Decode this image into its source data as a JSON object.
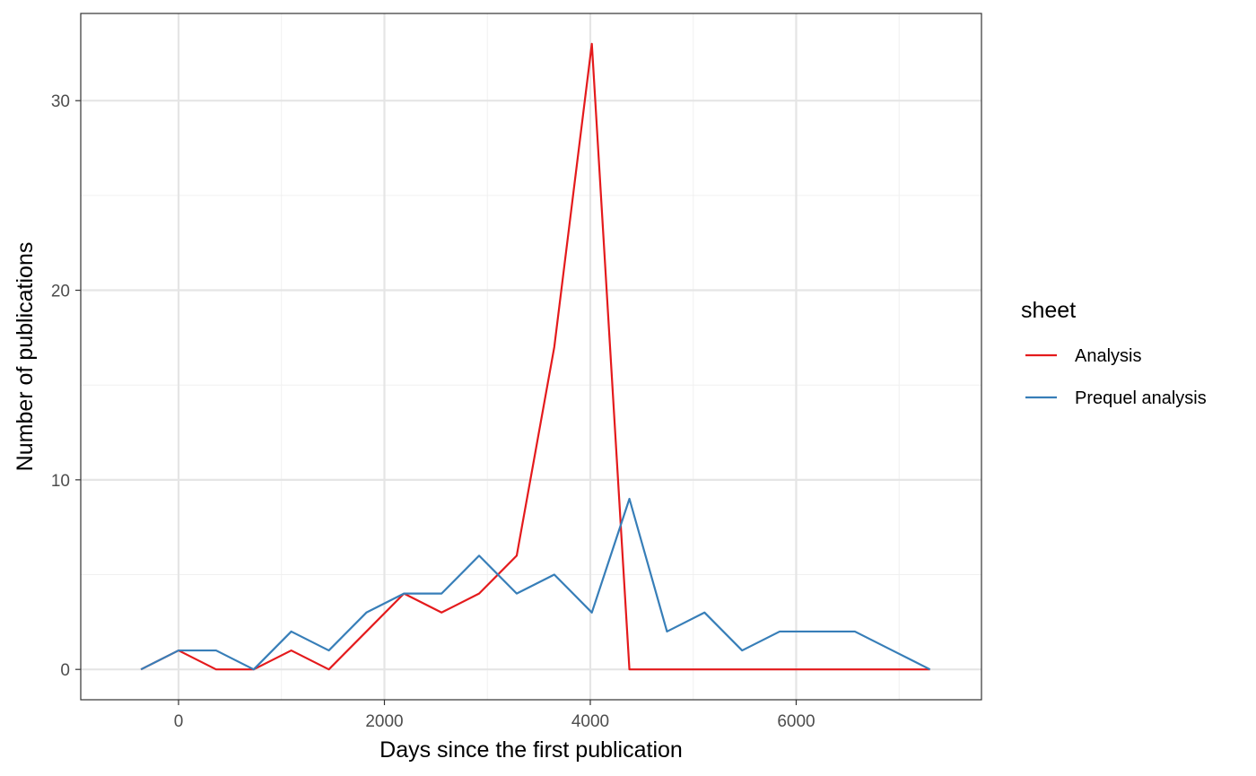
{
  "chart_data": {
    "type": "line",
    "xlabel": "Days since the first publication",
    "ylabel": "Number of publications",
    "xlim": [
      -950,
      7800
    ],
    "ylim": [
      -1.6,
      34.6
    ],
    "x_ticks": [
      0,
      2000,
      4000,
      6000
    ],
    "y_ticks": [
      0,
      10,
      20,
      30
    ],
    "x_tick_labels": [
      "0",
      "2000",
      "4000",
      "6000"
    ],
    "y_tick_labels": [
      "0",
      "10",
      "20",
      "30"
    ],
    "x_minor_gridlines": [
      1000,
      3000,
      5000,
      7000
    ],
    "y_minor_gridlines": [
      5,
      15,
      25
    ],
    "grid": true,
    "legend": {
      "title": "sheet",
      "position": "right"
    },
    "series": [
      {
        "name": "Analysis",
        "color": "#e41a1c",
        "x": [
          -365,
          0,
          365,
          730,
          1095,
          1460,
          1825,
          2190,
          2555,
          2920,
          3285,
          3650,
          4015,
          4380,
          4745,
          5110,
          5475,
          5840,
          6205,
          6570,
          6935,
          7300
        ],
        "y": [
          0,
          1,
          0,
          0,
          1,
          0,
          2,
          4,
          3,
          4,
          6,
          17,
          33,
          0,
          0,
          0,
          0,
          0,
          0,
          0,
          0,
          0
        ]
      },
      {
        "name": "Prequel analysis",
        "color": "#377eb8",
        "x": [
          -365,
          0,
          365,
          730,
          1095,
          1460,
          1825,
          2190,
          2555,
          2920,
          3285,
          3650,
          4015,
          4380,
          4745,
          5110,
          5475,
          5840,
          6205,
          6570,
          6935,
          7300
        ],
        "y": [
          0,
          1,
          1,
          0,
          2,
          1,
          3,
          4,
          4,
          6,
          4,
          5,
          3,
          9,
          2,
          3,
          1,
          2,
          2,
          2,
          1,
          0
        ]
      }
    ]
  }
}
